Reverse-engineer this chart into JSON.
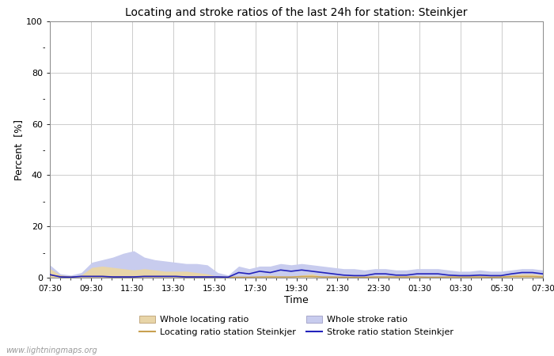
{
  "title": "Locating and stroke ratios of the last 24h for station: Steinkjer",
  "xlabel": "Time",
  "ylabel": "Percent  [%]",
  "ylim": [
    0,
    100
  ],
  "yticks_major": [
    0,
    20,
    40,
    60,
    80,
    100
  ],
  "yticks_minor": [
    10,
    30,
    50,
    70,
    90
  ],
  "time_labels": [
    "07:30",
    "09:30",
    "11:30",
    "13:30",
    "15:30",
    "17:30",
    "19:30",
    "21:30",
    "23:30",
    "01:30",
    "03:30",
    "05:30",
    "07:30"
  ],
  "background_color": "#ffffff",
  "plot_bg_color": "#ffffff",
  "grid_color": "#cccccc",
  "watermark": "www.lightningmaps.org",
  "whole_locating_fill_color": "#e8d5a8",
  "whole_stroke_fill_color": "#c8ccee",
  "station_locating_line_color": "#c8a050",
  "station_stroke_line_color": "#2222bb",
  "whole_locating_data": [
    3.5,
    1.0,
    0.5,
    1.0,
    4.0,
    4.5,
    4.0,
    3.5,
    3.0,
    3.5,
    3.0,
    2.5,
    2.5,
    2.5,
    2.0,
    1.5,
    0.5,
    0.3,
    0.5,
    0.3,
    0.5,
    1.0,
    0.5,
    0.5,
    1.0,
    1.5,
    0.5,
    0.5,
    0.3,
    0.3,
    0.3,
    0.5,
    0.5,
    0.5,
    0.5,
    0.5,
    0.3,
    0.3,
    0.5,
    0.5,
    0.5,
    0.5,
    0.3,
    0.5,
    1.0,
    1.5,
    1.5,
    1.0
  ],
  "whole_stroke_data": [
    5.0,
    1.5,
    1.0,
    2.0,
    6.0,
    7.0,
    8.0,
    9.5,
    10.5,
    8.0,
    7.0,
    6.5,
    6.0,
    5.5,
    5.5,
    5.0,
    2.0,
    1.0,
    4.5,
    3.5,
    4.5,
    4.5,
    5.5,
    5.0,
    5.5,
    5.0,
    4.5,
    4.0,
    3.5,
    3.5,
    3.0,
    3.5,
    3.5,
    3.0,
    3.0,
    3.5,
    3.5,
    3.5,
    3.0,
    2.5,
    2.5,
    3.0,
    2.5,
    2.5,
    3.0,
    3.5,
    3.5,
    3.0
  ],
  "station_locating_data": [
    1.0,
    0.5,
    0.3,
    0.5,
    0.5,
    0.5,
    0.3,
    0.3,
    0.3,
    0.5,
    0.5,
    0.5,
    0.5,
    0.3,
    0.3,
    0.3,
    0.3,
    0.2,
    0.2,
    0.2,
    0.3,
    0.3,
    0.3,
    0.3,
    0.5,
    0.5,
    0.3,
    0.3,
    0.2,
    0.2,
    0.2,
    0.3,
    0.3,
    0.3,
    0.3,
    0.3,
    0.2,
    0.2,
    0.3,
    0.3,
    0.3,
    0.3,
    0.2,
    0.3,
    0.5,
    0.5,
    0.5,
    0.3
  ],
  "station_stroke_data": [
    1.2,
    0.3,
    0.2,
    0.5,
    0.5,
    0.5,
    0.3,
    0.3,
    0.3,
    0.5,
    0.5,
    0.5,
    0.5,
    0.3,
    0.3,
    0.3,
    0.3,
    0.2,
    2.0,
    1.5,
    2.5,
    2.0,
    3.0,
    2.5,
    3.0,
    2.5,
    2.0,
    1.5,
    1.0,
    0.8,
    0.8,
    1.5,
    1.5,
    1.0,
    1.0,
    1.5,
    1.5,
    1.5,
    1.0,
    0.8,
    0.8,
    1.0,
    0.8,
    0.8,
    1.5,
    2.0,
    2.0,
    1.5
  ]
}
